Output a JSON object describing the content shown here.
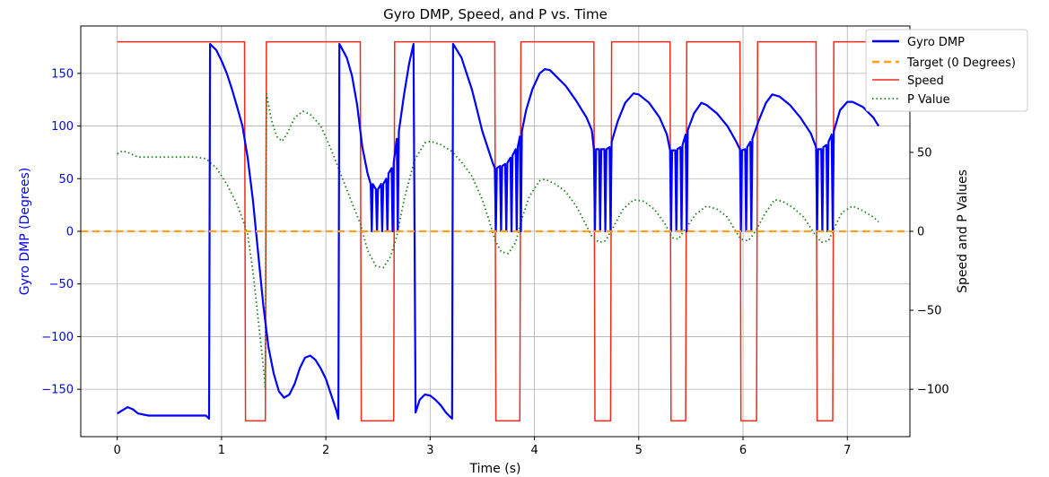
{
  "chart_data": {
    "type": "line",
    "title": "Gyro DMP, Speed, and P vs. Time",
    "xlabel": "Time (s)",
    "ylabel_left": "Gyro DMP (Degrees)",
    "ylabel_right": "Speed and P Values",
    "xlim": [
      -0.35,
      7.6
    ],
    "ylim_left": [
      -195,
      195
    ],
    "ylim_right": [
      -130,
      130
    ],
    "xticks": [
      0,
      1,
      2,
      3,
      4,
      5,
      6,
      7
    ],
    "yticks_left": [
      -150,
      -100,
      -50,
      0,
      50,
      100,
      150
    ],
    "yticks_right": [
      -100,
      -50,
      0,
      50
    ],
    "grid": true,
    "legend_position": "top-right",
    "colors": {
      "gyro": "#0000ff",
      "target": "#ff9f1c",
      "speed": "#ee2a1b",
      "p": "#1a7f1a",
      "left_axis_text": "#0000ff"
    },
    "series": [
      {
        "name": "Gyro DMP",
        "axis": "left",
        "style": "solid",
        "points": [
          [
            0,
            -173
          ],
          [
            0.05,
            -170
          ],
          [
            0.1,
            -167
          ],
          [
            0.15,
            -169
          ],
          [
            0.2,
            -173
          ],
          [
            0.3,
            -175
          ],
          [
            0.5,
            -175
          ],
          [
            0.7,
            -175
          ],
          [
            0.85,
            -175
          ],
          [
            0.88,
            -178
          ],
          [
            0.89,
            178
          ],
          [
            0.95,
            172
          ],
          [
            1.0,
            162
          ],
          [
            1.05,
            150
          ],
          [
            1.1,
            135
          ],
          [
            1.15,
            118
          ],
          [
            1.2,
            100
          ],
          [
            1.25,
            70
          ],
          [
            1.3,
            30
          ],
          [
            1.35,
            -20
          ],
          [
            1.4,
            -70
          ],
          [
            1.45,
            -110
          ],
          [
            1.5,
            -135
          ],
          [
            1.55,
            -152
          ],
          [
            1.6,
            -158
          ],
          [
            1.65,
            -155
          ],
          [
            1.7,
            -145
          ],
          [
            1.75,
            -130
          ],
          [
            1.8,
            -120
          ],
          [
            1.85,
            -118
          ],
          [
            1.9,
            -122
          ],
          [
            1.95,
            -130
          ],
          [
            2.0,
            -140
          ],
          [
            2.05,
            -155
          ],
          [
            2.1,
            -170
          ],
          [
            2.12,
            -178
          ],
          [
            2.13,
            178
          ],
          [
            2.2,
            165
          ],
          [
            2.25,
            148
          ],
          [
            2.3,
            120
          ],
          [
            2.35,
            80
          ],
          [
            2.4,
            55
          ],
          [
            2.43,
            45
          ],
          [
            2.44,
            0
          ],
          [
            2.45,
            45
          ],
          [
            2.48,
            40
          ],
          [
            2.49,
            0
          ],
          [
            2.5,
            40
          ],
          [
            2.53,
            45
          ],
          [
            2.54,
            0
          ],
          [
            2.55,
            45
          ],
          [
            2.58,
            50
          ],
          [
            2.59,
            0
          ],
          [
            2.6,
            55
          ],
          [
            2.63,
            60
          ],
          [
            2.64,
            0
          ],
          [
            2.65,
            65
          ],
          [
            2.68,
            88
          ],
          [
            2.69,
            0
          ],
          [
            2.7,
            95
          ],
          [
            2.75,
            130
          ],
          [
            2.8,
            160
          ],
          [
            2.84,
            178
          ],
          [
            2.86,
            -172
          ],
          [
            2.9,
            -160
          ],
          [
            2.95,
            -155
          ],
          [
            3.0,
            -156
          ],
          [
            3.05,
            -160
          ],
          [
            3.1,
            -165
          ],
          [
            3.15,
            -172
          ],
          [
            3.21,
            -178
          ],
          [
            3.22,
            178
          ],
          [
            3.3,
            165
          ],
          [
            3.35,
            150
          ],
          [
            3.4,
            135
          ],
          [
            3.45,
            115
          ],
          [
            3.5,
            95
          ],
          [
            3.55,
            80
          ],
          [
            3.6,
            65
          ],
          [
            3.62,
            60
          ],
          [
            3.63,
            0
          ],
          [
            3.64,
            60
          ],
          [
            3.67,
            62
          ],
          [
            3.68,
            0
          ],
          [
            3.69,
            62
          ],
          [
            3.72,
            64
          ],
          [
            3.73,
            0
          ],
          [
            3.74,
            65
          ],
          [
            3.77,
            70
          ],
          [
            3.78,
            0
          ],
          [
            3.79,
            72
          ],
          [
            3.82,
            78
          ],
          [
            3.83,
            0
          ],
          [
            3.84,
            80
          ],
          [
            3.86,
            90
          ],
          [
            3.87,
            0
          ],
          [
            3.88,
            95
          ],
          [
            3.92,
            115
          ],
          [
            3.98,
            135
          ],
          [
            4.05,
            150
          ],
          [
            4.1,
            154
          ],
          [
            4.15,
            153
          ],
          [
            4.2,
            148
          ],
          [
            4.3,
            138
          ],
          [
            4.4,
            124
          ],
          [
            4.5,
            108
          ],
          [
            4.55,
            96
          ],
          [
            4.57,
            78
          ],
          [
            4.58,
            0
          ],
          [
            4.59,
            78
          ],
          [
            4.62,
            78
          ],
          [
            4.63,
            0
          ],
          [
            4.64,
            78
          ],
          [
            4.67,
            78
          ],
          [
            4.68,
            0
          ],
          [
            4.69,
            78
          ],
          [
            4.72,
            80
          ],
          [
            4.73,
            0
          ],
          [
            4.74,
            85
          ],
          [
            4.8,
            105
          ],
          [
            4.87,
            122
          ],
          [
            4.95,
            131
          ],
          [
            5.0,
            130
          ],
          [
            5.1,
            122
          ],
          [
            5.2,
            108
          ],
          [
            5.27,
            92
          ],
          [
            5.3,
            77
          ],
          [
            5.31,
            0
          ],
          [
            5.32,
            77
          ],
          [
            5.35,
            77
          ],
          [
            5.36,
            0
          ],
          [
            5.37,
            78
          ],
          [
            5.4,
            80
          ],
          [
            5.41,
            0
          ],
          [
            5.42,
            82
          ],
          [
            5.45,
            92
          ],
          [
            5.46,
            0
          ],
          [
            5.47,
            96
          ],
          [
            5.53,
            112
          ],
          [
            5.6,
            122
          ],
          [
            5.65,
            120
          ],
          [
            5.75,
            112
          ],
          [
            5.85,
            100
          ],
          [
            5.93,
            86
          ],
          [
            5.97,
            78
          ],
          [
            5.98,
            0
          ],
          [
            5.99,
            77
          ],
          [
            6.02,
            78
          ],
          [
            6.03,
            0
          ],
          [
            6.04,
            80
          ],
          [
            6.07,
            85
          ],
          [
            6.08,
            0
          ],
          [
            6.09,
            88
          ],
          [
            6.15,
            105
          ],
          [
            6.22,
            122
          ],
          [
            6.28,
            130
          ],
          [
            6.35,
            128
          ],
          [
            6.45,
            120
          ],
          [
            6.55,
            108
          ],
          [
            6.65,
            93
          ],
          [
            6.7,
            80
          ],
          [
            6.71,
            0
          ],
          [
            6.72,
            78
          ],
          [
            6.75,
            78
          ],
          [
            6.76,
            0
          ],
          [
            6.77,
            80
          ],
          [
            6.8,
            82
          ],
          [
            6.81,
            0
          ],
          [
            6.82,
            85
          ],
          [
            6.85,
            92
          ],
          [
            6.86,
            0
          ],
          [
            6.87,
            95
          ],
          [
            6.93,
            115
          ],
          [
            7.0,
            123
          ],
          [
            7.05,
            123
          ],
          [
            7.15,
            118
          ],
          [
            7.25,
            108
          ],
          [
            7.3,
            100
          ]
        ]
      },
      {
        "name": "Target (0 Degrees)",
        "axis": "left",
        "style": "dashed",
        "points": [
          [
            -0.35,
            0
          ],
          [
            7.6,
            0
          ]
        ]
      },
      {
        "name": "Speed",
        "axis": "right",
        "style": "solid",
        "segments": [
          [
            0,
            120
          ],
          [
            1.22,
            120
          ],
          [
            1.23,
            -120
          ],
          [
            1.42,
            -120
          ],
          [
            1.43,
            120
          ],
          [
            2.33,
            120
          ],
          [
            2.34,
            -120
          ],
          [
            2.65,
            -120
          ],
          [
            2.66,
            120
          ],
          [
            3.62,
            120
          ],
          [
            3.63,
            -120
          ],
          [
            3.86,
            -120
          ],
          [
            3.87,
            120
          ],
          [
            4.57,
            120
          ],
          [
            4.58,
            -120
          ],
          [
            4.73,
            -120
          ],
          [
            4.74,
            120
          ],
          [
            5.3,
            120
          ],
          [
            5.31,
            -120
          ],
          [
            5.45,
            -120
          ],
          [
            5.46,
            120
          ],
          [
            5.97,
            120
          ],
          [
            5.98,
            -120
          ],
          [
            6.13,
            -120
          ],
          [
            6.14,
            120
          ],
          [
            6.7,
            120
          ],
          [
            6.71,
            -120
          ],
          [
            6.86,
            -120
          ],
          [
            6.87,
            120
          ],
          [
            7.3,
            120
          ]
        ]
      },
      {
        "name": "P Value",
        "axis": "right",
        "style": "dotted",
        "points": [
          [
            0,
            49
          ],
          [
            0.05,
            51
          ],
          [
            0.1,
            50
          ],
          [
            0.2,
            47
          ],
          [
            0.4,
            47
          ],
          [
            0.6,
            47
          ],
          [
            0.75,
            47
          ],
          [
            0.85,
            46
          ],
          [
            0.95,
            40
          ],
          [
            1.05,
            30
          ],
          [
            1.15,
            17
          ],
          [
            1.2,
            8
          ],
          [
            1.25,
            -2
          ],
          [
            1.3,
            -25
          ],
          [
            1.35,
            -55
          ],
          [
            1.4,
            -85
          ],
          [
            1.42,
            -100
          ],
          [
            1.43,
            87
          ],
          [
            1.48,
            70
          ],
          [
            1.53,
            60
          ],
          [
            1.58,
            57
          ],
          [
            1.63,
            62
          ],
          [
            1.7,
            72
          ],
          [
            1.78,
            76
          ],
          [
            1.85,
            74
          ],
          [
            1.95,
            67
          ],
          [
            2.05,
            52
          ],
          [
            2.15,
            35
          ],
          [
            2.25,
            18
          ],
          [
            2.33,
            5
          ],
          [
            2.4,
            -12
          ],
          [
            2.48,
            -22
          ],
          [
            2.55,
            -23
          ],
          [
            2.62,
            -16
          ],
          [
            2.68,
            -3
          ],
          [
            2.75,
            20
          ],
          [
            2.85,
            45
          ],
          [
            2.95,
            56
          ],
          [
            3.0,
            57
          ],
          [
            3.1,
            55
          ],
          [
            3.2,
            51
          ],
          [
            3.3,
            44
          ],
          [
            3.4,
            35
          ],
          [
            3.5,
            20
          ],
          [
            3.55,
            10
          ],
          [
            3.62,
            -5
          ],
          [
            3.68,
            -13
          ],
          [
            3.75,
            -14
          ],
          [
            3.82,
            -7
          ],
          [
            3.88,
            8
          ],
          [
            3.95,
            22
          ],
          [
            4.05,
            32
          ],
          [
            4.1,
            33
          ],
          [
            4.2,
            30
          ],
          [
            4.3,
            25
          ],
          [
            4.4,
            16
          ],
          [
            4.48,
            6
          ],
          [
            4.55,
            -3
          ],
          [
            4.62,
            -7
          ],
          [
            4.68,
            -6
          ],
          [
            4.75,
            2
          ],
          [
            4.85,
            14
          ],
          [
            4.95,
            20
          ],
          [
            5.05,
            19
          ],
          [
            5.15,
            14
          ],
          [
            5.25,
            5
          ],
          [
            5.32,
            -4
          ],
          [
            5.38,
            -5
          ],
          [
            5.45,
            2
          ],
          [
            5.55,
            11
          ],
          [
            5.65,
            16
          ],
          [
            5.75,
            14
          ],
          [
            5.85,
            9
          ],
          [
            5.92,
            1
          ],
          [
            5.98,
            -5
          ],
          [
            6.05,
            -6
          ],
          [
            6.12,
            0
          ],
          [
            6.2,
            10
          ],
          [
            6.3,
            20
          ],
          [
            6.38,
            19
          ],
          [
            6.48,
            15
          ],
          [
            6.58,
            9
          ],
          [
            6.68,
            -1
          ],
          [
            6.75,
            -7
          ],
          [
            6.82,
            -6
          ],
          [
            6.88,
            3
          ],
          [
            6.95,
            12
          ],
          [
            7.05,
            16
          ],
          [
            7.15,
            13
          ],
          [
            7.25,
            9
          ],
          [
            7.3,
            6
          ]
        ]
      }
    ]
  }
}
